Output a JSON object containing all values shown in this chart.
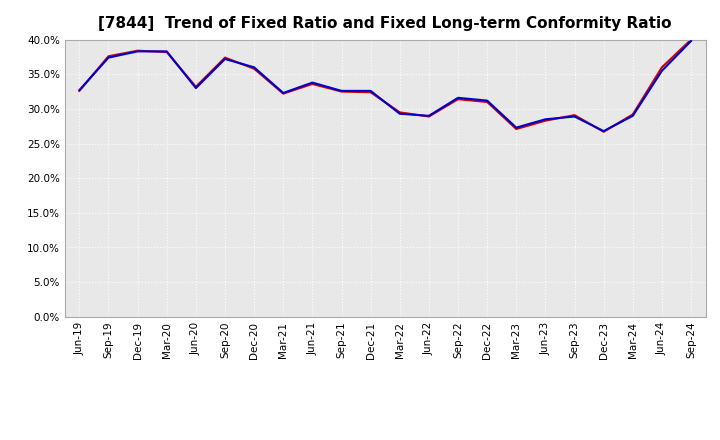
{
  "title": "[7844]  Trend of Fixed Ratio and Fixed Long-term Conformity Ratio",
  "x_labels": [
    "Jun-19",
    "Sep-19",
    "Dec-19",
    "Mar-20",
    "Jun-20",
    "Sep-20",
    "Dec-20",
    "Mar-21",
    "Jun-21",
    "Sep-21",
    "Dec-21",
    "Mar-22",
    "Jun-22",
    "Sep-22",
    "Dec-22",
    "Mar-23",
    "Jun-23",
    "Sep-23",
    "Dec-23",
    "Mar-24",
    "Jun-24",
    "Sep-24"
  ],
  "fixed_ratio": [
    0.327,
    0.374,
    0.383,
    0.383,
    0.33,
    0.372,
    0.36,
    0.323,
    0.338,
    0.326,
    0.326,
    0.293,
    0.29,
    0.316,
    0.312,
    0.273,
    0.285,
    0.289,
    0.268,
    0.29,
    0.355,
    0.398
  ],
  "fixed_lt_ratio": [
    0.326,
    0.376,
    0.384,
    0.382,
    0.332,
    0.374,
    0.358,
    0.322,
    0.336,
    0.325,
    0.324,
    0.295,
    0.289,
    0.314,
    0.31,
    0.271,
    0.283,
    0.291,
    0.267,
    0.292,
    0.36,
    0.4
  ],
  "fixed_ratio_color": "#0000cc",
  "fixed_lt_ratio_color": "#cc0000",
  "ylim": [
    0.0,
    0.4
  ],
  "yticks": [
    0.0,
    0.05,
    0.1,
    0.15,
    0.2,
    0.25,
    0.3,
    0.35,
    0.4
  ],
  "background_color": "#ffffff",
  "plot_bg_color": "#e8e8e8",
  "grid_color": "#ffffff",
  "line_width": 1.5,
  "title_fontsize": 11,
  "tick_fontsize": 7.5,
  "legend_fontsize": 8.5
}
